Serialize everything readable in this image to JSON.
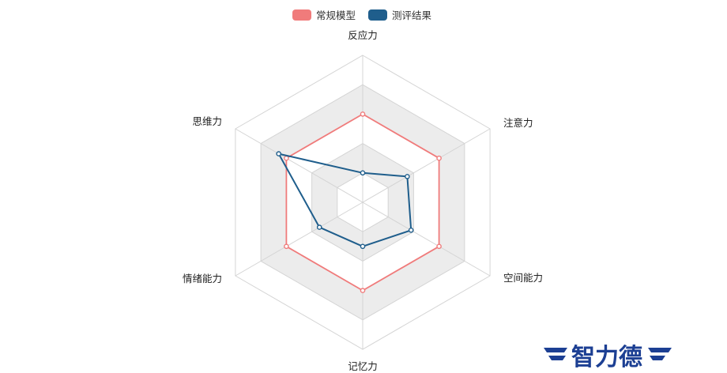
{
  "chart_data": {
    "type": "radar",
    "axes": [
      "反应力",
      "注意力",
      "空间能力",
      "记忆力",
      "情绪能力",
      "思维力"
    ],
    "rmax": 10,
    "ring_levels": [
      2,
      4,
      6,
      8,
      10
    ],
    "ring_fills": [
      "#ffffff",
      "#ececec",
      "#ffffff",
      "#ececec",
      "#ffffff"
    ],
    "grid": true,
    "legend_position": "top-center",
    "series": [
      {
        "name": "常规模型",
        "values": [
          6,
          6,
          6,
          6,
          6,
          6
        ],
        "color": "#f07b7b"
      },
      {
        "name": "测评结果",
        "values": [
          2,
          3.5,
          3.8,
          3,
          3.4,
          6.6
        ],
        "color": "#1f5e8c"
      }
    ]
  },
  "logo": {
    "text": "智力德"
  }
}
